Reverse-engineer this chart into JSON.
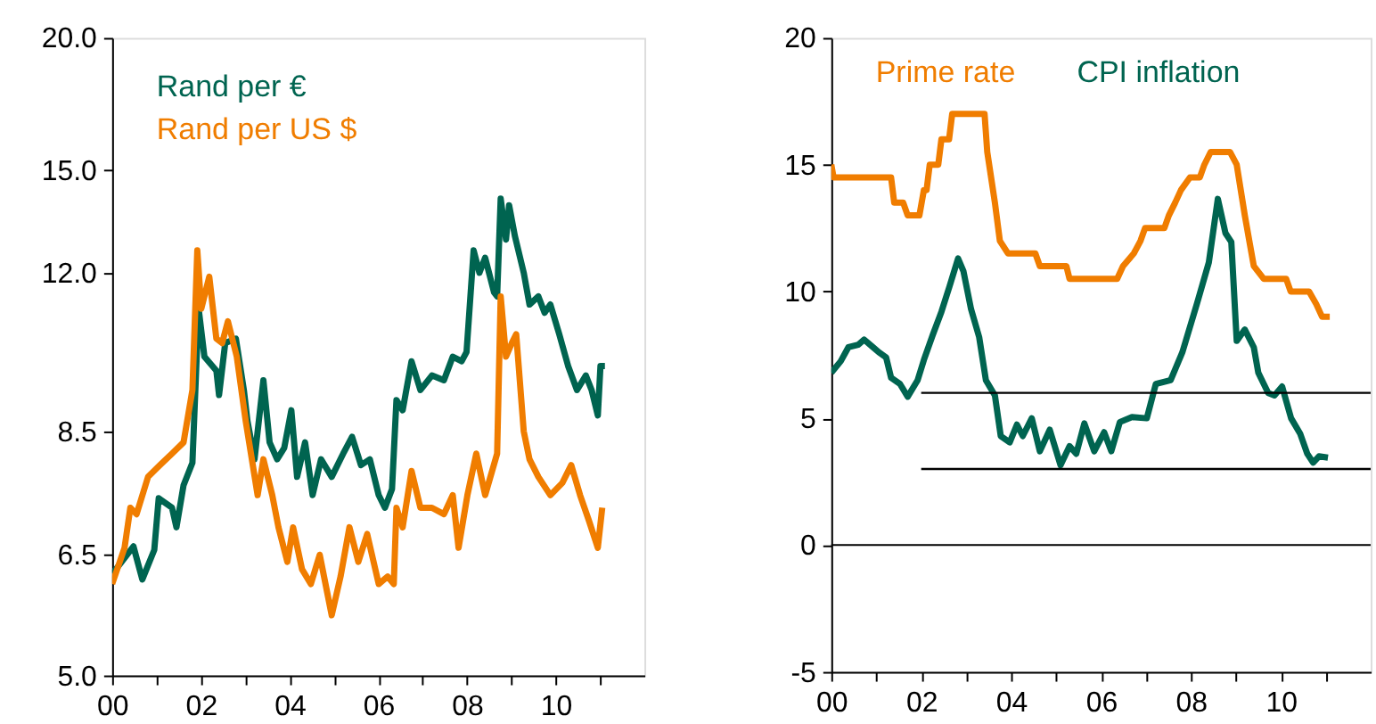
{
  "chart_data": [
    {
      "type": "line",
      "log": "y",
      "legend": "top left",
      "grid": false,
      "xlim": [
        2000,
        2012
      ],
      "xticks": [
        {
          "value": 2000,
          "label": "00"
        },
        {
          "value": 2001,
          "label": null
        },
        {
          "value": 2002,
          "label": "02"
        },
        {
          "value": 2003,
          "label": null
        },
        {
          "value": 2004,
          "label": "04"
        },
        {
          "value": 2005,
          "label": null
        },
        {
          "value": 2006,
          "label": "06"
        },
        {
          "value": 2007,
          "label": null
        },
        {
          "value": 2008,
          "label": "08"
        },
        {
          "value": 2009,
          "label": null
        },
        {
          "value": 2010,
          "label": "10"
        },
        {
          "value": 2011,
          "label": null
        }
      ],
      "ylim": [
        5,
        20
      ],
      "yticks": [
        {
          "value": 5,
          "label": "5.0"
        },
        6.5,
        8.5,
        {
          "value": 12,
          "label": "12.0"
        },
        {
          "value": 15,
          "label": "15.0"
        },
        {
          "value": 20,
          "label": "20.0"
        }
      ],
      "series": [
        {
          "name": "Rand per €",
          "color": "#006450",
          "x": [
            2000.01,
            2000.48,
            2000.68,
            2000.95,
            2001.05,
            2001.35,
            2001.45,
            2001.61,
            2001.81,
            2001.95,
            2002.08,
            2002.35,
            2002.41,
            2002.55,
            2002.79,
            2002.97,
            2003.05,
            2003.21,
            2003.41,
            2003.55,
            2003.72,
            2003.88,
            2004.04,
            2004.17,
            2004.35,
            2004.52,
            2004.71,
            2004.95,
            2005.21,
            2005.41,
            2005.61,
            2005.81,
            2006.01,
            2006.15,
            2006.31,
            2006.41,
            2006.55,
            2006.75,
            2006.95,
            2007.21,
            2007.48,
            2007.68,
            2007.88,
            2007.99,
            2008.15,
            2008.28,
            2008.41,
            2008.61,
            2008.68,
            2008.76,
            2008.88,
            2008.95,
            2009.08,
            2009.28,
            2009.41,
            2009.61,
            2009.75,
            2009.88,
            2010.08,
            2010.28,
            2010.48,
            2010.68,
            2010.81,
            2010.95,
            2011.01,
            2011.11
          ],
          "values": [
            6.24,
            6.62,
            6.16,
            6.57,
            7.35,
            7.2,
            6.9,
            7.56,
            7.94,
            11.1,
            10.0,
            9.7,
            9.2,
            10.3,
            10.4,
            9.3,
            8.7,
            8.0,
            9.5,
            8.3,
            8.0,
            8.2,
            8.9,
            7.7,
            8.3,
            7.4,
            8.0,
            7.7,
            8.1,
            8.4,
            7.9,
            8.0,
            7.4,
            7.2,
            7.5,
            9.1,
            8.9,
            9.9,
            9.3,
            9.6,
            9.5,
            10.0,
            9.9,
            10.1,
            12.6,
            12.0,
            12.4,
            11.5,
            11.4,
            14.1,
            12.9,
            13.9,
            13.0,
            12.0,
            11.2,
            11.4,
            11.0,
            11.2,
            10.5,
            9.8,
            9.3,
            9.6,
            9.3,
            8.8,
            9.8,
            9.8
          ]
        },
        {
          "name": "Rand per US $",
          "color": "#f07d00",
          "x": [
            2000.0,
            2000.28,
            2000.41,
            2000.55,
            2000.81,
            2001.08,
            2001.35,
            2001.61,
            2001.81,
            2001.92,
            2002.01,
            2002.19,
            2002.35,
            2002.48,
            2002.61,
            2002.81,
            2003.01,
            2003.15,
            2003.28,
            2003.41,
            2003.61,
            2003.75,
            2003.95,
            2004.08,
            2004.28,
            2004.48,
            2004.68,
            2004.95,
            2005.15,
            2005.35,
            2005.55,
            2005.75,
            2006.01,
            2006.21,
            2006.35,
            2006.41,
            2006.55,
            2006.75,
            2006.95,
            2007.21,
            2007.48,
            2007.68,
            2007.81,
            2008.01,
            2008.21,
            2008.41,
            2008.68,
            2008.76,
            2008.88,
            2009.01,
            2009.11,
            2009.28,
            2009.41,
            2009.61,
            2009.88,
            2010.15,
            2010.35,
            2010.55,
            2010.75,
            2010.95,
            2011.05
          ],
          "values": [
            6.1,
            6.6,
            7.2,
            7.1,
            7.7,
            7.9,
            8.1,
            8.3,
            9.3,
            12.6,
            11.1,
            11.9,
            10.4,
            10.3,
            10.8,
            10.0,
            8.7,
            8.0,
            7.4,
            8.0,
            7.4,
            6.9,
            6.4,
            6.9,
            6.3,
            6.1,
            6.5,
            5.7,
            6.2,
            6.9,
            6.4,
            6.8,
            6.1,
            6.2,
            6.1,
            7.2,
            6.9,
            7.8,
            7.2,
            7.2,
            7.1,
            7.4,
            6.6,
            7.4,
            8.1,
            7.4,
            8.1,
            11.4,
            10.0,
            10.3,
            10.5,
            8.5,
            8.0,
            7.7,
            7.4,
            7.6,
            7.9,
            7.4,
            7.0,
            6.6,
            7.2
          ]
        }
      ]
    },
    {
      "type": "line",
      "legend": "top",
      "grid": false,
      "xlim": [
        2000,
        2012
      ],
      "xticks": [
        {
          "value": 2000,
          "label": "00"
        },
        {
          "value": 2001,
          "label": null
        },
        {
          "value": 2002,
          "label": "02"
        },
        {
          "value": 2003,
          "label": null
        },
        {
          "value": 2004,
          "label": "04"
        },
        {
          "value": 2005,
          "label": null
        },
        {
          "value": 2006,
          "label": "06"
        },
        {
          "value": 2007,
          "label": null
        },
        {
          "value": 2008,
          "label": "08"
        },
        {
          "value": 2009,
          "label": null
        },
        {
          "value": 2010,
          "label": "10"
        },
        {
          "value": 2011,
          "label": null
        }
      ],
      "ylim": [
        -5,
        20
      ],
      "yticks": [
        -5,
        0,
        5,
        10,
        15,
        20
      ],
      "ref_lines": [
        {
          "axis": "y",
          "value": 0,
          "color": "#000000"
        }
      ],
      "series": [
        {
          "name": "Prime rate",
          "color": "#f07d00",
          "x": [
            2000.0,
            2000.05,
            2001.33,
            2001.4,
            2001.6,
            2001.7,
            2001.96,
            2002.06,
            2002.12,
            2002.19,
            2002.38,
            2002.45,
            2002.62,
            2002.69,
            2003.41,
            2003.47,
            2003.64,
            2003.75,
            2003.93,
            2004.54,
            2004.64,
            2005.23,
            2005.3,
            2006.36,
            2006.49,
            2006.73,
            2006.88,
            2006.98,
            2007.41,
            2007.51,
            2007.65,
            2007.78,
            2007.98,
            2008.2,
            2008.3,
            2008.44,
            2008.87,
            2009.02,
            2009.2,
            2009.3,
            2009.4,
            2009.62,
            2010.12,
            2010.22,
            2010.63,
            2010.79,
            2010.92,
            2011.09
          ],
          "values": [
            15.0,
            14.5,
            14.5,
            13.5,
            13.5,
            13.0,
            13.0,
            14.0,
            14.0,
            15.0,
            15.0,
            16.0,
            16.0,
            17.0,
            17.0,
            15.5,
            13.5,
            12.0,
            11.5,
            11.5,
            11.0,
            11.0,
            10.5,
            10.5,
            11.0,
            11.5,
            12.0,
            12.5,
            12.5,
            13.0,
            13.5,
            14.0,
            14.5,
            14.5,
            15.0,
            15.5,
            15.5,
            15.0,
            13.0,
            12.0,
            11.0,
            10.5,
            10.5,
            10.0,
            10.0,
            9.5,
            9.0,
            9.0
          ]
        },
        {
          "name": "CPI inflation",
          "color": "#006450",
          "x": [
            2000.0,
            2000.21,
            2000.38,
            2000.6,
            2000.73,
            2000.93,
            2001.06,
            2001.22,
            2001.33,
            2001.53,
            2001.7,
            2001.92,
            2002.06,
            2002.26,
            2002.45,
            2002.63,
            2002.82,
            2002.94,
            2003.11,
            2003.29,
            2003.44,
            2003.64,
            2003.77,
            2003.97,
            2004.13,
            2004.26,
            2004.46,
            2004.64,
            2004.86,
            2005.1,
            2005.3,
            2005.45,
            2005.63,
            2005.85,
            2006.07,
            2006.23,
            2006.42,
            2006.69,
            2007.02,
            2007.22,
            2007.55,
            2007.81,
            2008.14,
            2008.4,
            2008.6,
            2008.77,
            2008.9,
            2009.02,
            2009.2,
            2009.4,
            2009.5,
            2009.72,
            2009.86,
            2010.03,
            2010.23,
            2010.43,
            2010.59,
            2010.72,
            2010.85,
            2011.05
          ],
          "values": [
            6.8,
            7.25,
            7.8,
            7.9,
            8.1,
            7.8,
            7.6,
            7.4,
            6.6,
            6.35,
            5.85,
            6.5,
            7.3,
            8.3,
            9.2,
            10.2,
            11.3,
            10.8,
            9.3,
            8.2,
            6.5,
            5.9,
            4.3,
            4.05,
            4.75,
            4.3,
            5.0,
            3.7,
            4.55,
            3.15,
            3.9,
            3.6,
            4.8,
            3.7,
            4.45,
            3.7,
            4.85,
            5.05,
            5.0,
            6.35,
            6.5,
            7.6,
            9.55,
            11.15,
            13.65,
            12.3,
            11.95,
            8.05,
            8.5,
            7.8,
            6.8,
            6.0,
            5.9,
            6.25,
            5.0,
            4.4,
            3.6,
            3.25,
            3.5,
            3.45
          ]
        },
        {
          "color": "#000000",
          "x": [
            2002.0,
            2012.0
          ],
          "values": [
            6,
            6
          ]
        },
        {
          "color": "#000000",
          "x": [
            2002.0,
            2012.0
          ],
          "values": [
            3,
            3
          ]
        }
      ]
    }
  ]
}
